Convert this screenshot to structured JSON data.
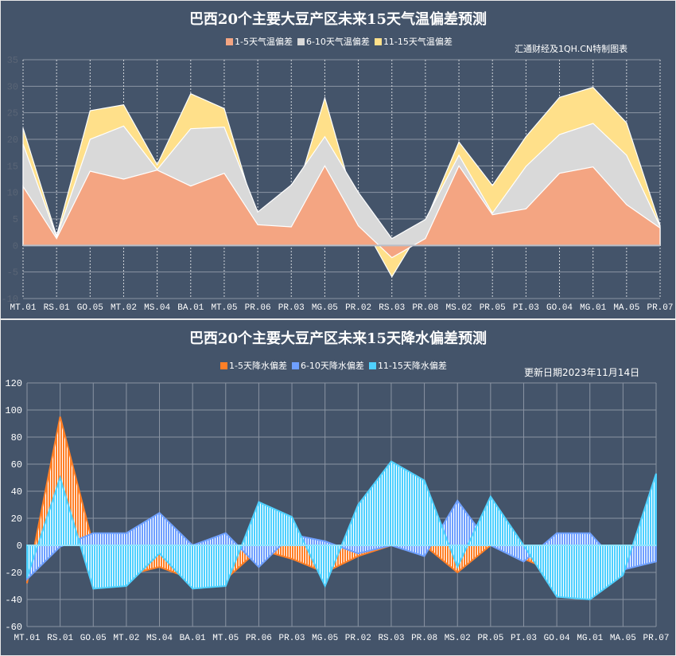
{
  "chart_data": [
    {
      "type": "area",
      "stacked": true,
      "title": "巴西20个主要大豆产区未来15天气温偏差预测",
      "note": "汇通财经及1QH.CN特制图表",
      "categories": [
        "MT.01",
        "RS.01",
        "GO.05",
        "MT.02",
        "MS.04",
        "BA.01",
        "MT.05",
        "PR.06",
        "PR.03",
        "MG.05",
        "PR.02",
        "RS.03",
        "PR.08",
        "MS.02",
        "PR.05",
        "PI.03",
        "GO.04",
        "MG.01",
        "MA.05",
        "PR.07"
      ],
      "ylim": [
        -10,
        35
      ],
      "yticks": [
        -10,
        -5,
        0,
        5,
        10,
        15,
        20,
        25,
        30,
        35
      ],
      "grid": true,
      "legend_position": "top",
      "series": [
        {
          "name": "1-5天气温偏差",
          "color": "#f4a582",
          "values": [
            11.1,
            1.3,
            14,
            12.5,
            14.2,
            11.2,
            13.6,
            3.9,
            3.5,
            15,
            3.7,
            -2.3,
            1.3,
            15,
            5.8,
            6.9,
            13.6,
            14.8,
            7.7,
            3.3
          ]
        },
        {
          "name": "6-10天气温偏差",
          "color": "#d9d9d9",
          "values": [
            8,
            0.3,
            6,
            10,
            0.1,
            10.8,
            8.7,
            2.4,
            7.9,
            5.5,
            6.3,
            3.6,
            3.6,
            2,
            0.3,
            8,
            7.3,
            8.2,
            9.3,
            0.3
          ]
        },
        {
          "name": "11-15天气温偏差",
          "color": "#ffe08a",
          "values": [
            3,
            0.2,
            5.4,
            4,
            0.9,
            6.6,
            3.5,
            -1.8,
            -4.7,
            7.3,
            -4.5,
            -7.2,
            -0.4,
            2.5,
            5.2,
            5.6,
            7,
            6.8,
            6.1,
            0.2
          ]
        }
      ]
    },
    {
      "type": "area",
      "stacked": false,
      "title": "巴西20个主要大豆产区未来15天降水偏差预测",
      "note": "更新日期2023年11月14日",
      "categories": [
        "MT.01",
        "RS.01",
        "GO.05",
        "MT.02",
        "MS.04",
        "BA.01",
        "MT.05",
        "PR.06",
        "PR.03",
        "MG.05",
        "PR.02",
        "RS.03",
        "PR.08",
        "MS.02",
        "PR.05",
        "PI.03",
        "GO.04",
        "MG.01",
        "MA.05",
        "PR.07"
      ],
      "ylim": [
        -60,
        120
      ],
      "yticks": [
        -60,
        -40,
        -20,
        0,
        20,
        40,
        60,
        80,
        100,
        120
      ],
      "grid": true,
      "legend_position": "top",
      "series": [
        {
          "name": "1-5天降水偏差",
          "color": "#ff7f27",
          "values": [
            -28,
            95,
            0,
            -22,
            -16,
            -25,
            -25,
            -3,
            -10,
            -20,
            -8,
            0,
            0,
            -20,
            0,
            -10,
            -20,
            -20,
            -10,
            0
          ]
        },
        {
          "name": "6-10天降水偏差",
          "color": "#6fa0ff",
          "values": [
            -25,
            -1,
            9,
            9,
            24,
            0,
            9,
            -16,
            8,
            3,
            -6,
            0,
            -8,
            33,
            0,
            -12,
            9,
            9,
            -18,
            -12
          ]
        },
        {
          "name": "11-15天降水偏差",
          "color": "#4fd0ff",
          "values": [
            -24,
            50,
            -32,
            -30,
            -6,
            -32,
            -30,
            32,
            21,
            -30,
            30,
            62,
            48,
            -16,
            36,
            0,
            -38,
            -40,
            -22,
            53
          ]
        }
      ]
    }
  ]
}
